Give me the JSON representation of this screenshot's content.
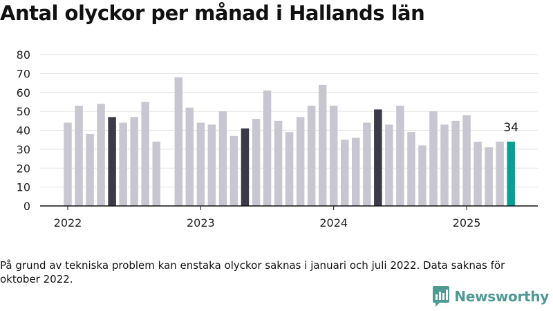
{
  "title": "Antal olyckor per månad i Hallands län",
  "note": "På grund av tekniska problem kan enstaka olyckor saknas i januari och juli 2022. Data saknas för oktober 2022.",
  "brand": {
    "name": "Newsworthy",
    "icon": "newsworthy-logo-icon",
    "color": "#4f9a93"
  },
  "colors": {
    "default": "#c8c7d1",
    "highlight": "#3b3a47",
    "latest": "#0b9e94",
    "grid": "#e2e2e2",
    "axis": "#111111"
  },
  "chart_data": {
    "type": "bar",
    "title": "Antal olyckor per månad i Hallands län",
    "xlabel": "",
    "ylabel": "",
    "ylim": [
      0,
      80
    ],
    "yticks": [
      "0",
      "10",
      "20",
      "30",
      "40",
      "50",
      "60",
      "70",
      "80"
    ],
    "xticks": [
      "2022",
      "2023",
      "2024",
      "2025"
    ],
    "grid": true,
    "categories": [
      "2022-01",
      "2022-02",
      "2022-03",
      "2022-04",
      "2022-05",
      "2022-06",
      "2022-07",
      "2022-08",
      "2022-09",
      "2022-10",
      "2022-11",
      "2022-12",
      "2023-01",
      "2023-02",
      "2023-03",
      "2023-04",
      "2023-05",
      "2023-06",
      "2023-07",
      "2023-08",
      "2023-09",
      "2023-10",
      "2023-11",
      "2023-12",
      "2024-01",
      "2024-02",
      "2024-03",
      "2024-04",
      "2024-05",
      "2024-06",
      "2024-07",
      "2024-08",
      "2024-09",
      "2024-10",
      "2024-11",
      "2024-12",
      "2025-01",
      "2025-02",
      "2025-03",
      "2025-04",
      "2025-05"
    ],
    "values": [
      44,
      53,
      38,
      54,
      47,
      44,
      47,
      55,
      34,
      null,
      68,
      52,
      44,
      43,
      50,
      37,
      41,
      46,
      61,
      45,
      39,
      47,
      53,
      64,
      53,
      35,
      36,
      44,
      51,
      43,
      53,
      39,
      32,
      50,
      43,
      45,
      48,
      34,
      31,
      34,
      34
    ],
    "highlighted": [
      "2022-05",
      "2023-05",
      "2024-05"
    ],
    "latest": "2025-05",
    "latest_label": "34"
  }
}
